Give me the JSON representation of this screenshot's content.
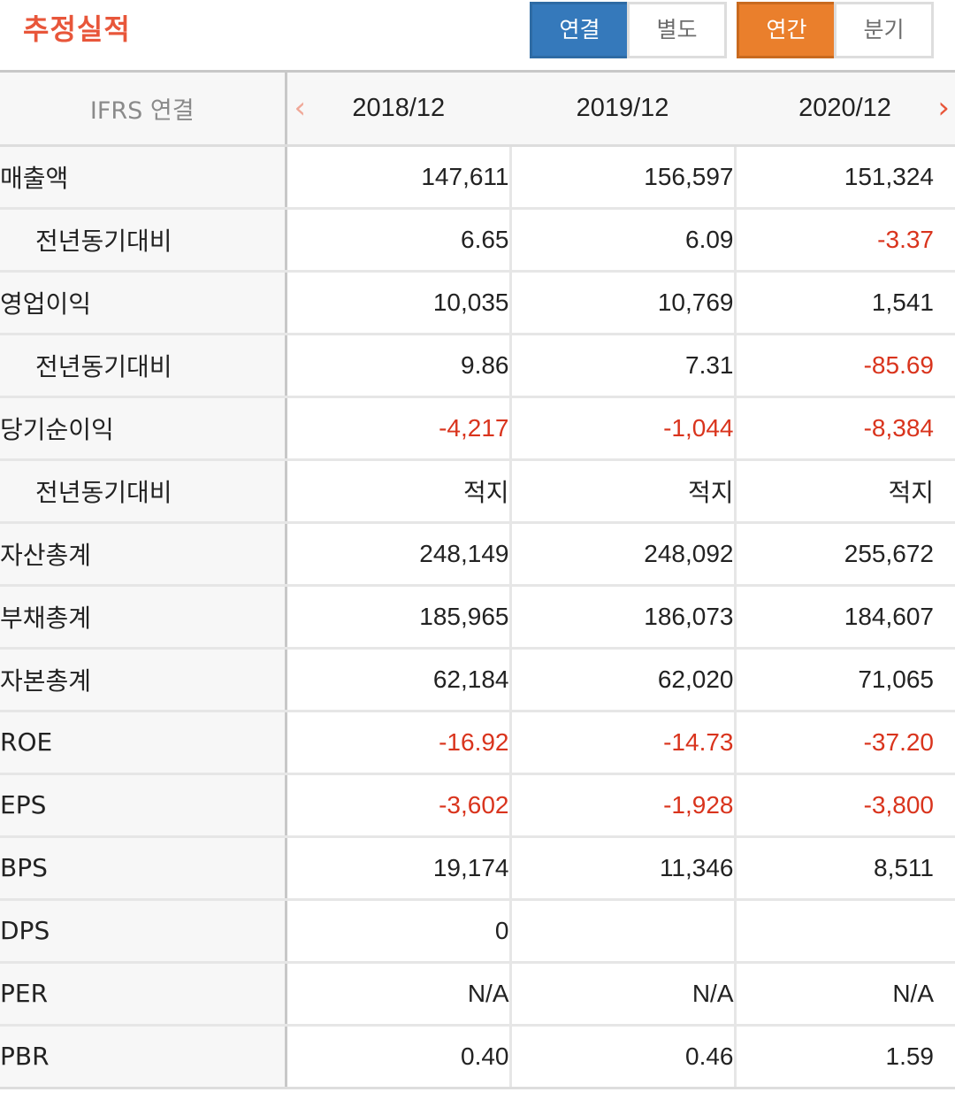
{
  "header": {
    "title": "추정실적",
    "title_color": "#e8563a",
    "consolidation_toggle": [
      {
        "label": "연결",
        "active": true
      },
      {
        "label": "별도",
        "active": false
      }
    ],
    "period_toggle": [
      {
        "label": "연간",
        "active": true
      },
      {
        "label": "분기",
        "active": false
      }
    ],
    "active_blue": "#3579bb",
    "active_orange": "#ea7f2c"
  },
  "table": {
    "label_header": "IFRS 연결",
    "periods": [
      "2018/12",
      "2019/12",
      "2020/12"
    ],
    "prev_icon": "chevron-left-icon",
    "next_icon": "chevron-right-icon",
    "prev_color": "#f0a898",
    "next_color": "#e8563a",
    "negative_color": "#d9341d",
    "rows": [
      {
        "label": "매출액",
        "sub": false,
        "values": [
          "147,611",
          "156,597",
          "151,324"
        ]
      },
      {
        "label": "전년동기대비",
        "sub": true,
        "values": [
          "6.65",
          "6.09",
          "-3.37"
        ]
      },
      {
        "label": "영업이익",
        "sub": false,
        "values": [
          "10,035",
          "10,769",
          "1,541"
        ]
      },
      {
        "label": "전년동기대비",
        "sub": true,
        "values": [
          "9.86",
          "7.31",
          "-85.69"
        ]
      },
      {
        "label": "당기순이익",
        "sub": false,
        "values": [
          "-4,217",
          "-1,044",
          "-8,384"
        ]
      },
      {
        "label": "전년동기대비",
        "sub": true,
        "values": [
          "적지",
          "적지",
          "적지"
        ]
      },
      {
        "label": "자산총계",
        "sub": false,
        "values": [
          "248,149",
          "248,092",
          "255,672"
        ]
      },
      {
        "label": "부채총계",
        "sub": false,
        "values": [
          "185,965",
          "186,073",
          "184,607"
        ]
      },
      {
        "label": "자본총계",
        "sub": false,
        "values": [
          "62,184",
          "62,020",
          "71,065"
        ]
      },
      {
        "label": "ROE",
        "sub": false,
        "values": [
          "-16.92",
          "-14.73",
          "-37.20"
        ]
      },
      {
        "label": "EPS",
        "sub": false,
        "values": [
          "-3,602",
          "-1,928",
          "-3,800"
        ]
      },
      {
        "label": "BPS",
        "sub": false,
        "values": [
          "19,174",
          "11,346",
          "8,511"
        ]
      },
      {
        "label": "DPS",
        "sub": false,
        "values": [
          "0",
          "",
          ""
        ]
      },
      {
        "label": "PER",
        "sub": false,
        "values": [
          "N/A",
          "N/A",
          "N/A"
        ]
      },
      {
        "label": "PBR",
        "sub": false,
        "values": [
          "0.40",
          "0.46",
          "1.59"
        ]
      }
    ]
  }
}
